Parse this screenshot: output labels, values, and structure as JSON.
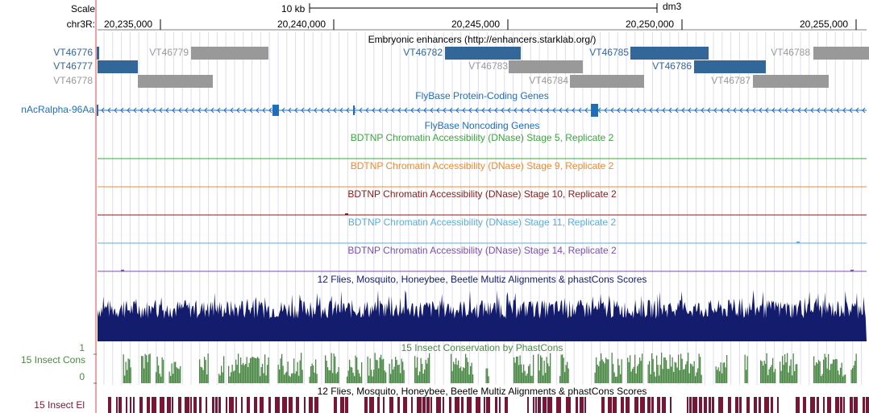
{
  "scale": {
    "label": "Scale",
    "bar_label": "10 kb",
    "assembly": "dm3"
  },
  "position": {
    "chrom_label": "chr3R:",
    "ticks": [
      "20,235,000",
      "20,240,000",
      "20,245,000",
      "20,250,000",
      "20,255,000"
    ]
  },
  "colors": {
    "enhancer_dark": "#336699",
    "enhancer_gray": "#999999",
    "gene_blue": "#1f6fb8",
    "stage5": "#3aa83a",
    "stage9": "#f08a2c",
    "stage10": "#8b1a1a",
    "stage11": "#5aaed8",
    "stage14": "#7e4fb0",
    "multiz": "#141c6e",
    "phastcons": "#4a8a44",
    "elements": "#7a1535",
    "guide": "#dcdcf0",
    "left_rule": "#f5a0a0"
  },
  "enhancers": {
    "title": "Embryonic enhancers (http://enhancers.starklab.org/)",
    "items": [
      {
        "name": "VT46776",
        "style": "dark"
      },
      {
        "name": "VT46777",
        "style": "dark"
      },
      {
        "name": "VT46778",
        "style": "gray"
      },
      {
        "name": "VT46779",
        "style": "gray"
      },
      {
        "name": "VT46782",
        "style": "dark"
      },
      {
        "name": "VT46783",
        "style": "gray"
      },
      {
        "name": "VT46784",
        "style": "gray"
      },
      {
        "name": "VT46785",
        "style": "dark"
      },
      {
        "name": "VT46786",
        "style": "dark"
      },
      {
        "name": "VT46787",
        "style": "gray"
      },
      {
        "name": "VT46788",
        "style": "gray"
      }
    ]
  },
  "genes": {
    "title": "FlyBase Protein-Coding Genes",
    "gene_name": "nAcRalpha-96Aa",
    "noncoding_title": "FlyBase Noncoding Genes"
  },
  "dnase": [
    {
      "title": "BDTNP Chromatin Accessibility (DNase) Stage 5, Replicate 2",
      "color_key": "stage5"
    },
    {
      "title": "BDTNP Chromatin Accessibility (DNase) Stage 9, Replicate 2",
      "color_key": "stage9"
    },
    {
      "title": "BDTNP Chromatin Accessibility (DNase) Stage 10, Replicate 2",
      "color_key": "stage10"
    },
    {
      "title": "BDTNP Chromatin Accessibility (DNase) Stage 11, Replicate 2",
      "color_key": "stage11"
    },
    {
      "title": "BDTNP Chromatin Accessibility (DNase) Stage 14, Replicate 2",
      "color_key": "stage14"
    }
  ],
  "conservation": {
    "multiz_title": "12 Flies, Mosquito, Honeybee, Beetle Multiz Alignments & phastCons Scores",
    "phast_title": "15 Insect Conservation by PhastCons",
    "phast_side_label": "15 Insect Cons",
    "phast_ymax": "1",
    "phast_ymin": "0",
    "elements_title": "12 Flies, Mosquito, Honeybee, Beetle Multiz Alignments & phastCons Scores",
    "elements_side_label": "15 Insect El"
  }
}
